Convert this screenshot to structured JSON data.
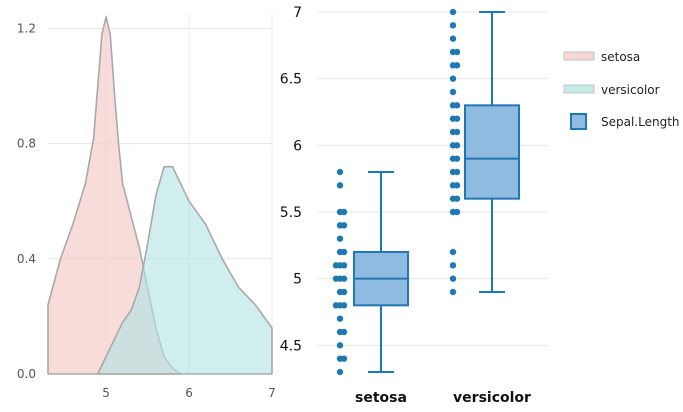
{
  "chart_data": [
    {
      "type": "area",
      "xlim": [
        4.3,
        7.0
      ],
      "ylim": [
        0,
        1.25
      ],
      "xticks": [
        5,
        6,
        7
      ],
      "yticks": [
        0.0,
        0.4,
        0.8,
        1.2
      ],
      "xtick_labels": [
        "5",
        "6",
        "7"
      ],
      "ytick_labels": [
        "0.0",
        "0.4",
        "0.8",
        "1.2"
      ],
      "grid": true,
      "series": [
        {
          "name": "setosa",
          "color": "#f4c7c3",
          "x": [
            4.3,
            4.45,
            4.6,
            4.75,
            4.85,
            4.9,
            4.95,
            5.0,
            5.05,
            5.1,
            5.15,
            5.2,
            5.3,
            5.4,
            5.5,
            5.6,
            5.7,
            5.8,
            5.9
          ],
          "y": [
            0.24,
            0.4,
            0.52,
            0.66,
            0.82,
            1.0,
            1.18,
            1.24,
            1.18,
            0.98,
            0.8,
            0.66,
            0.55,
            0.44,
            0.3,
            0.16,
            0.06,
            0.02,
            0.0
          ]
        },
        {
          "name": "versicolor",
          "color": "#b2e4e2",
          "x": [
            4.9,
            5.0,
            5.1,
            5.2,
            5.3,
            5.4,
            5.5,
            5.6,
            5.7,
            5.8,
            5.9,
            6.0,
            6.2,
            6.4,
            6.6,
            6.8,
            7.0
          ],
          "y": [
            0.0,
            0.06,
            0.12,
            0.18,
            0.22,
            0.3,
            0.45,
            0.62,
            0.72,
            0.72,
            0.66,
            0.6,
            0.52,
            0.4,
            0.3,
            0.24,
            0.16
          ]
        }
      ]
    },
    {
      "type": "box",
      "categories": [
        "setosa",
        "versicolor"
      ],
      "ylim": [
        4.3,
        7.0
      ],
      "yticks": [
        4.5,
        5.0,
        5.5,
        6.0,
        6.5,
        7.0
      ],
      "ytick_labels": [
        "4.5",
        "5",
        "5.5",
        "6",
        "6.5",
        "7"
      ],
      "grid": true,
      "series": [
        {
          "name": "Sepal.Length",
          "color": "#1f77b4",
          "boxes": [
            {
              "category": "setosa",
              "min": 4.3,
              "q1": 4.8,
              "median": 5.0,
              "q3": 5.2,
              "max": 5.8
            },
            {
              "category": "versicolor",
              "min": 4.9,
              "q1": 5.6,
              "median": 5.9,
              "q3": 6.3,
              "max": 7.0
            }
          ],
          "points": [
            {
              "category": "setosa",
              "values": [
                4.3,
                4.4,
                4.4,
                4.5,
                4.6,
                4.6,
                4.7,
                4.8,
                4.8,
                4.8,
                4.9,
                4.9,
                5.0,
                5.0,
                5.0,
                5.1,
                5.1,
                5.1,
                5.2,
                5.2,
                5.3,
                5.4,
                5.4,
                5.5,
                5.5,
                5.7,
                5.8
              ]
            },
            {
              "category": "versicolor",
              "values": [
                4.9,
                5.0,
                5.1,
                5.2,
                5.5,
                5.5,
                5.6,
                5.6,
                5.7,
                5.7,
                5.8,
                5.8,
                5.9,
                5.9,
                6.0,
                6.0,
                6.1,
                6.1,
                6.2,
                6.2,
                6.3,
                6.3,
                6.4,
                6.5,
                6.6,
                6.6,
                6.7,
                6.7,
                6.8,
                6.9,
                7.0
              ]
            }
          ]
        }
      ],
      "legend": {
        "placement": "right",
        "entries": [
          "setosa",
          "versicolor",
          "Sepal.Length"
        ]
      }
    }
  ]
}
